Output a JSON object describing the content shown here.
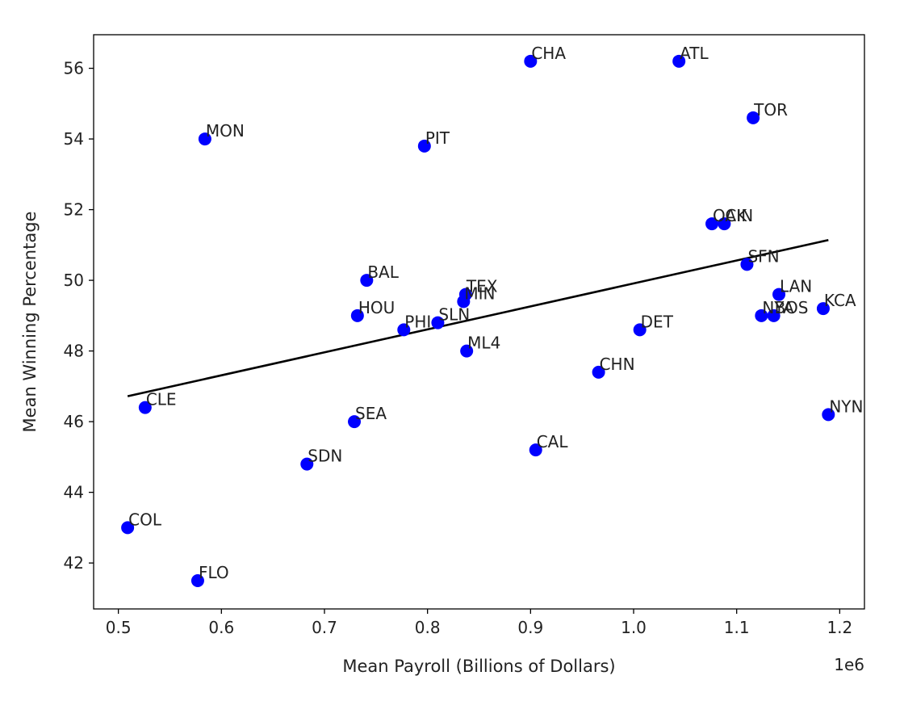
{
  "chart_data": {
    "type": "scatter",
    "title": "",
    "xlabel": "Mean Payroll (Billions of Dollars)",
    "ylabel": "Mean Winning Percentage",
    "x_offset_label": "1e6",
    "xlim": [
      476000,
      1224000
    ],
    "ylim": [
      40.7,
      56.95
    ],
    "xticks": [
      0.5,
      0.6,
      0.7,
      0.8,
      0.9,
      1.0,
      1.1,
      1.2
    ],
    "xtick_labels": [
      "0.5",
      "0.6",
      "0.7",
      "0.8",
      "0.9",
      "1.0",
      "1.1",
      "1.2"
    ],
    "yticks": [
      42,
      44,
      46,
      48,
      50,
      52,
      54,
      56
    ],
    "ytick_labels": [
      "42",
      "44",
      "46",
      "48",
      "50",
      "52",
      "54",
      "56"
    ],
    "grid": false,
    "point_color": "#0000ff",
    "line_color": "#000000",
    "points": [
      {
        "label": "CHA",
        "x": 900000,
        "y": 56.2
      },
      {
        "label": "ATL",
        "x": 1044000,
        "y": 56.2
      },
      {
        "label": "TOR",
        "x": 1116000,
        "y": 54.6
      },
      {
        "label": "MON",
        "x": 584000,
        "y": 54.0
      },
      {
        "label": "PIT",
        "x": 797000,
        "y": 53.8
      },
      {
        "label": "OAK",
        "x": 1076000,
        "y": 51.6
      },
      {
        "label": "CIN",
        "x": 1088000,
        "y": 51.6
      },
      {
        "label": "SFN",
        "x": 1110000,
        "y": 50.45
      },
      {
        "label": "BAL",
        "x": 741000,
        "y": 50.0
      },
      {
        "label": "TEX",
        "x": 837000,
        "y": 49.6
      },
      {
        "label": "MIN",
        "x": 835000,
        "y": 49.4
      },
      {
        "label": "LAN",
        "x": 1141000,
        "y": 49.6
      },
      {
        "label": "KCA",
        "x": 1184000,
        "y": 49.2
      },
      {
        "label": "NYA",
        "x": 1124000,
        "y": 49.0
      },
      {
        "label": "BOS",
        "x": 1136000,
        "y": 49.0
      },
      {
        "label": "HOU",
        "x": 732000,
        "y": 49.0
      },
      {
        "label": "SLN",
        "x": 810000,
        "y": 48.8
      },
      {
        "label": "PHI",
        "x": 777000,
        "y": 48.6
      },
      {
        "label": "DET",
        "x": 1006000,
        "y": 48.6
      },
      {
        "label": "ML4",
        "x": 838000,
        "y": 48.0
      },
      {
        "label": "CHN",
        "x": 966000,
        "y": 47.4
      },
      {
        "label": "CLE",
        "x": 526000,
        "y": 46.4
      },
      {
        "label": "NYN",
        "x": 1189000,
        "y": 46.2
      },
      {
        "label": "SEA",
        "x": 729000,
        "y": 46.0
      },
      {
        "label": "CAL",
        "x": 905000,
        "y": 45.2
      },
      {
        "label": "SDN",
        "x": 683000,
        "y": 44.8
      },
      {
        "label": "COL",
        "x": 509000,
        "y": 43.0
      },
      {
        "label": "FLO",
        "x": 577000,
        "y": 41.5
      }
    ],
    "fit_line": {
      "x": [
        509000,
        1189000
      ],
      "y": [
        46.72,
        51.14
      ]
    }
  }
}
